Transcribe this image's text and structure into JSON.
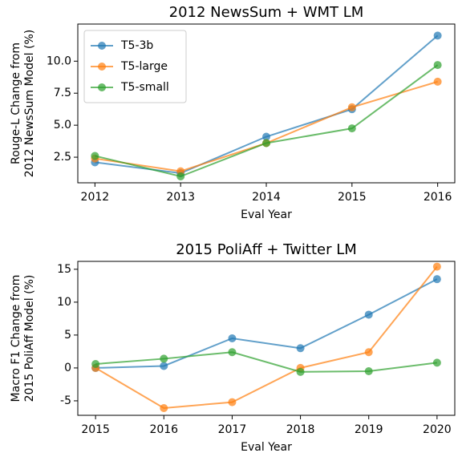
{
  "chart_data": [
    {
      "type": "line",
      "title": "2012 NewsSum + WMT LM",
      "xlabel": "Eval Year",
      "ylabel": [
        "Rouge-L Change from",
        "2012 NewsSum Model (%)"
      ],
      "x": [
        2012,
        2013,
        2014,
        2015,
        2016
      ],
      "xlim": [
        2011.8,
        2016.2
      ],
      "xticks": [
        2012,
        2013,
        2014,
        2015,
        2016
      ],
      "ylim": [
        0.5,
        12.9
      ],
      "yticks": [
        2.5,
        {
          "value": 5,
          "label": "5.0"
        },
        7.5,
        {
          "value": 10,
          "label": "10.0"
        }
      ],
      "legend": "upper left",
      "series": [
        {
          "name": "T5-3b",
          "color": "#1f77b4",
          "values": [
            2.1,
            1.25,
            4.1,
            6.25,
            12.0
          ]
        },
        {
          "name": "T5-large",
          "color": "#ff7f0e",
          "values": [
            2.4,
            1.4,
            3.6,
            6.4,
            8.4
          ]
        },
        {
          "name": "T5-small",
          "color": "#2ca02c",
          "values": [
            2.6,
            1.0,
            3.6,
            4.75,
            9.7
          ]
        }
      ]
    },
    {
      "type": "line",
      "title": "2015 PoliAff + Twitter LM",
      "xlabel": "Eval Year",
      "ylabel": [
        "Macro F1 Change from",
        "2015 PoliAff Model (%)"
      ],
      "x": [
        2015,
        2016,
        2017,
        2018,
        2019,
        2020
      ],
      "xlim": [
        2014.74,
        2020.26
      ],
      "xticks": [
        2015,
        2016,
        2017,
        2018,
        2019,
        2020
      ],
      "ylim": [
        -7.2,
        16.2
      ],
      "yticks": [
        -5,
        0,
        5,
        10,
        15
      ],
      "series": [
        {
          "color": "#1f77b4",
          "values": [
            0,
            0.3,
            4.5,
            3.0,
            8.1,
            13.5
          ]
        },
        {
          "color": "#ff7f0e",
          "values": [
            0,
            -6.1,
            -5.2,
            0,
            2.4,
            15.4
          ]
        },
        {
          "color": "#2ca02c",
          "values": [
            0.6,
            1.4,
            2.4,
            -0.6,
            -0.5,
            0.8
          ]
        }
      ]
    }
  ]
}
